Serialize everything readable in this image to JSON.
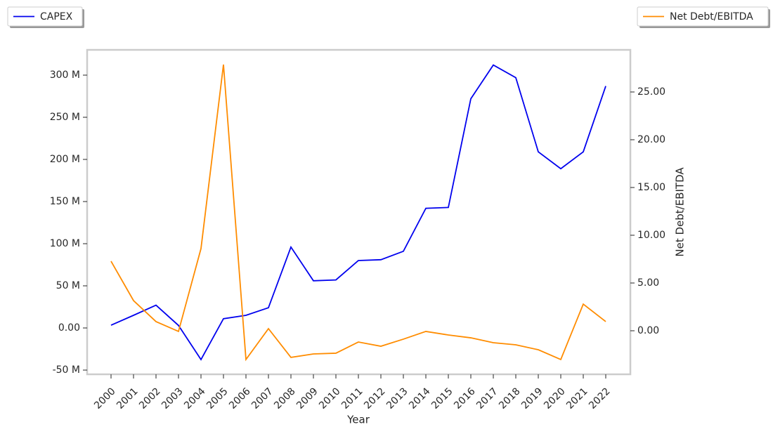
{
  "chart_data": {
    "type": "line",
    "x_label": "Year",
    "y2_label": "Net Debt/EBITDA",
    "categories": [
      "2000",
      "2001",
      "2002",
      "2003",
      "2004",
      "2005",
      "2006",
      "2007",
      "2008",
      "2009",
      "2010",
      "2011",
      "2012",
      "2013",
      "2014",
      "2015",
      "2016",
      "2017",
      "2018",
      "2019",
      "2020",
      "2021",
      "2022"
    ],
    "series": [
      {
        "name": "CAPEX",
        "color": "#0000ee",
        "axis": "y",
        "values": [
          3300000,
          15000000,
          27000000,
          3000000,
          -37500000,
          11000000,
          15000000,
          24000000,
          96000000,
          56000000,
          57000000,
          80000000,
          81000000,
          91000000,
          142000000,
          143000000,
          272000000,
          312000000,
          297000000,
          209000000,
          189000000,
          209000000,
          287000000
        ]
      },
      {
        "name": "Net Debt/EBITDA",
        "color": "#ff8c00",
        "axis": "y2",
        "values": [
          7.28,
          3.16,
          0.96,
          -0.07,
          8.6,
          27.87,
          -3.01,
          0.22,
          -2.79,
          -2.43,
          -2.35,
          -1.18,
          -1.62,
          -0.88,
          -0.07,
          -0.44,
          -0.74,
          -1.25,
          -1.47,
          -1.99,
          -3.01,
          2.79,
          0.96
        ]
      }
    ],
    "ylim": [
      -55000000,
      330000000
    ],
    "yticks": [
      {
        "value": -50000000,
        "label": "-50 M"
      },
      {
        "value": 0,
        "label": "0.00"
      },
      {
        "value": 50000000,
        "label": "50 M"
      },
      {
        "value": 100000000,
        "label": "100 M"
      },
      {
        "value": 150000000,
        "label": "150 M"
      },
      {
        "value": 200000000,
        "label": "200 M"
      },
      {
        "value": 250000000,
        "label": "250 M"
      },
      {
        "value": 300000000,
        "label": "300 M"
      }
    ],
    "y2lim": [
      -4.56,
      29.41
    ],
    "y2ticks": [
      {
        "value": 0,
        "label": "0.00"
      },
      {
        "value": 5,
        "label": "5.00"
      },
      {
        "value": 10,
        "label": "10.00"
      },
      {
        "value": 15,
        "label": "15.00"
      },
      {
        "value": 20,
        "label": "20.00"
      },
      {
        "value": 25,
        "label": "25.00"
      }
    ]
  }
}
